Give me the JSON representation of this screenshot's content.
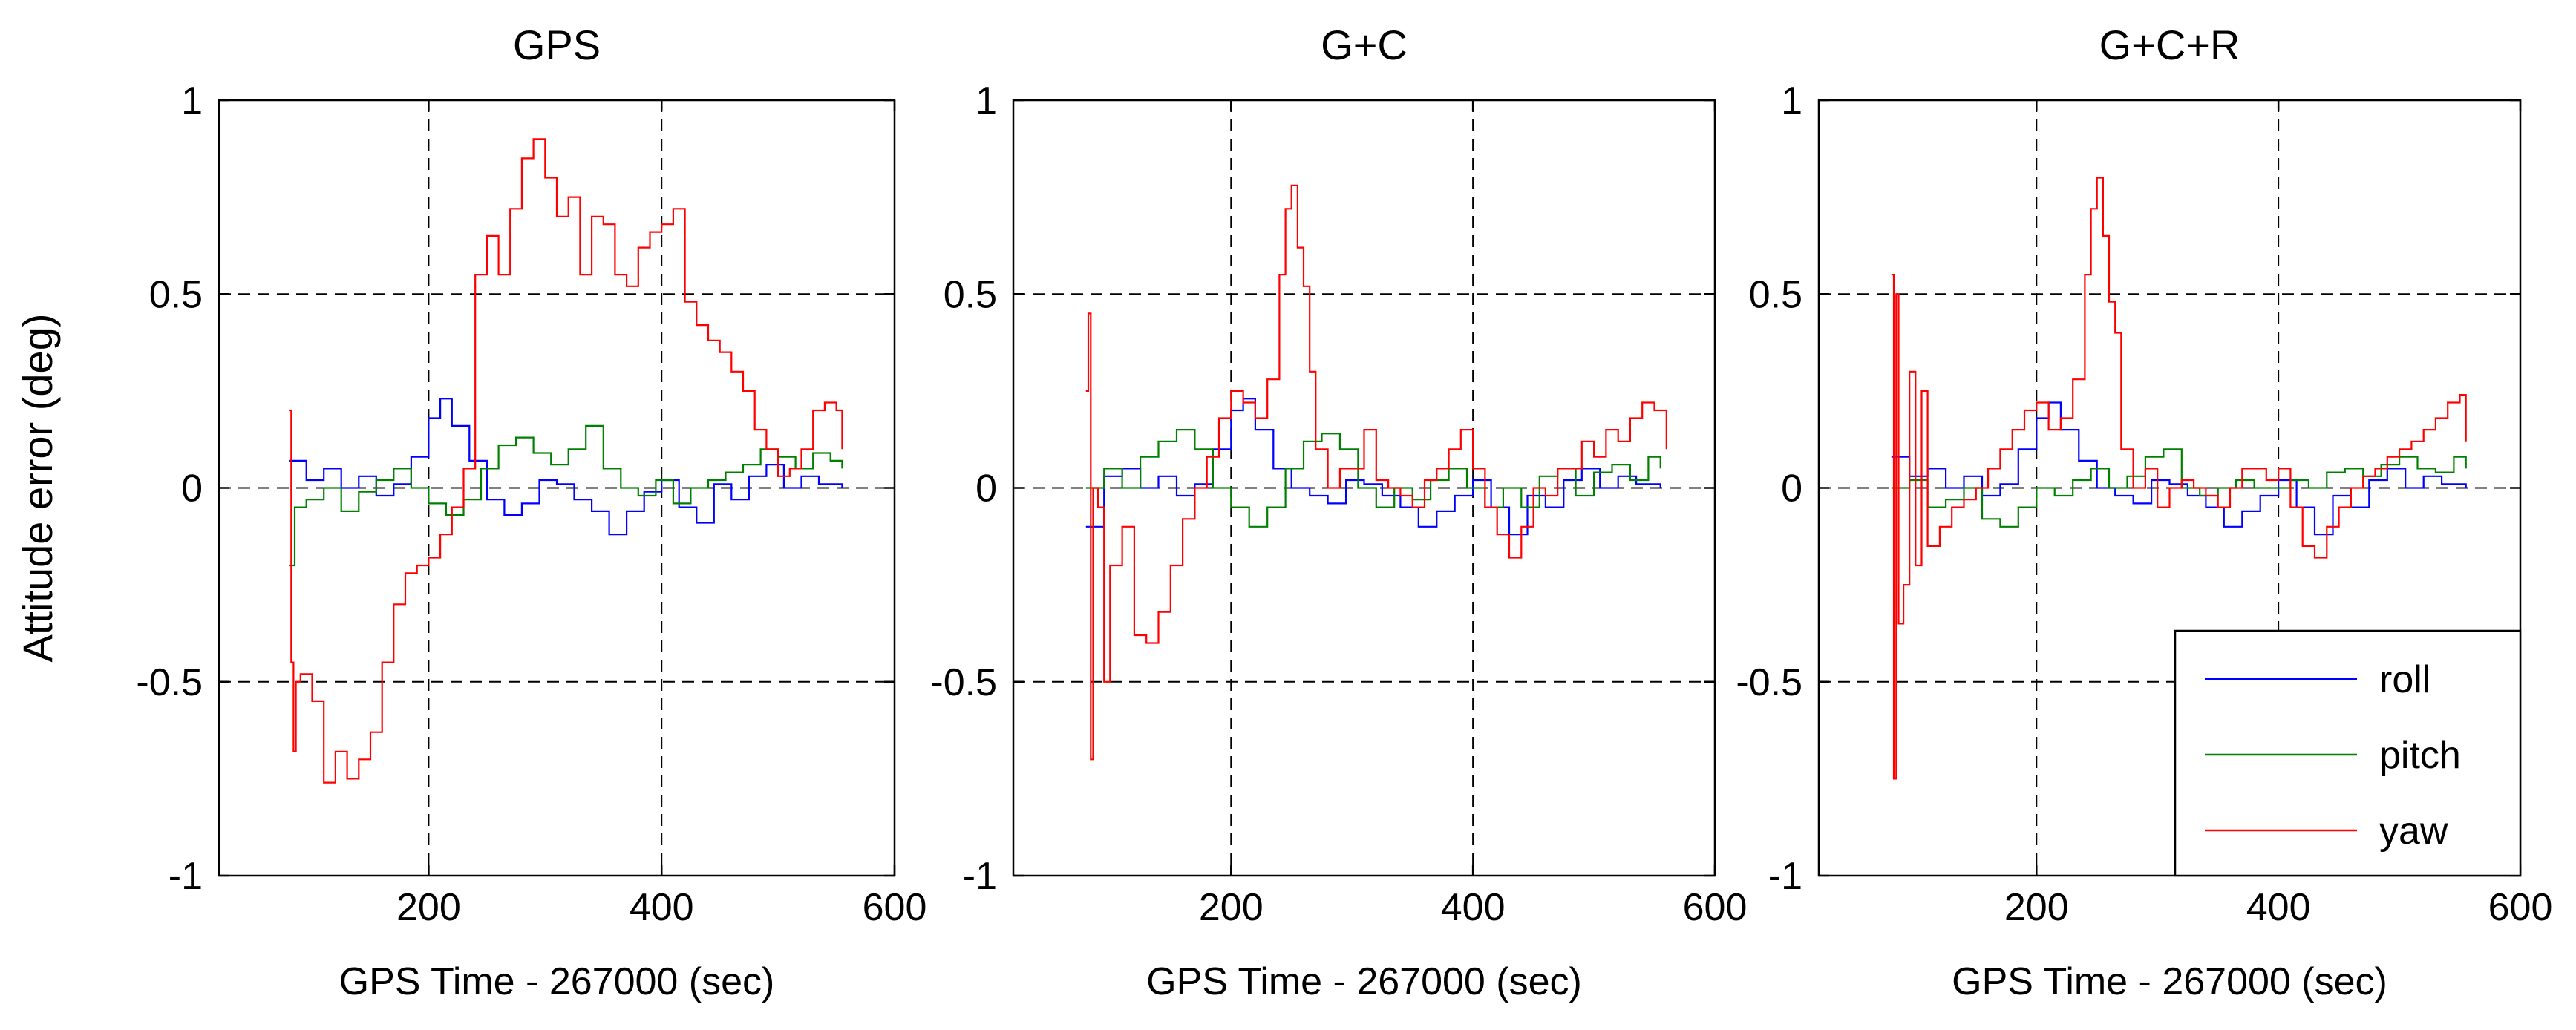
{
  "chart_data": [
    {
      "type": "line",
      "title": "GPS",
      "xlabel": "GPS Time - 267000 (sec)",
      "ylabel": "Attitude error (deg)",
      "xlim": [
        20,
        600
      ],
      "ylim": [
        -1,
        1
      ],
      "xticks": [
        200,
        400,
        600
      ],
      "yticks": [
        -1,
        -0.5,
        0,
        0.5,
        1
      ],
      "xtick_labels": [
        "200",
        "400",
        "600"
      ],
      "ytick_labels": [
        "-1",
        "-0.5",
        "0",
        "0.5",
        "1"
      ],
      "grid": true,
      "series": [
        {
          "name": "roll",
          "color": "#0000ff",
          "x": [
            80,
            95,
            110,
            125,
            140,
            155,
            170,
            185,
            200,
            210,
            220,
            235,
            250,
            265,
            280,
            295,
            310,
            325,
            340,
            355,
            370,
            385,
            400,
            415,
            430,
            445,
            460,
            475,
            490,
            505,
            520,
            535,
            555
          ],
          "y": [
            0.07,
            0.02,
            0.05,
            0.0,
            0.03,
            -0.02,
            0.01,
            0.08,
            0.18,
            0.23,
            0.16,
            0.07,
            -0.03,
            -0.07,
            -0.04,
            0.02,
            0.01,
            -0.03,
            -0.06,
            -0.12,
            -0.06,
            -0.01,
            0.02,
            -0.05,
            -0.09,
            0.01,
            -0.03,
            0.03,
            0.06,
            0.0,
            0.03,
            0.01,
            0.0
          ]
        },
        {
          "name": "pitch",
          "color": "#008000",
          "x": [
            80,
            85,
            95,
            110,
            125,
            140,
            155,
            170,
            185,
            200,
            215,
            230,
            245,
            260,
            275,
            290,
            305,
            320,
            335,
            350,
            365,
            380,
            395,
            410,
            425,
            440,
            455,
            470,
            485,
            500,
            515,
            530,
            545,
            555
          ],
          "y": [
            -0.2,
            -0.05,
            -0.03,
            0.0,
            -0.06,
            -0.01,
            0.02,
            0.05,
            0.0,
            -0.04,
            -0.07,
            -0.03,
            0.05,
            0.11,
            0.13,
            0.09,
            0.06,
            0.1,
            0.16,
            0.05,
            0.0,
            -0.02,
            0.02,
            -0.04,
            0.0,
            0.02,
            0.04,
            0.06,
            0.1,
            0.08,
            0.05,
            0.09,
            0.07,
            0.05
          ]
        },
        {
          "name": "yaw",
          "color": "#ff0000",
          "x": [
            80,
            82,
            84,
            86,
            90,
            100,
            110,
            120,
            130,
            140,
            150,
            160,
            170,
            180,
            190,
            200,
            210,
            220,
            230,
            240,
            250,
            260,
            270,
            280,
            290,
            300,
            310,
            320,
            330,
            340,
            350,
            360,
            370,
            380,
            390,
            400,
            410,
            420,
            430,
            440,
            450,
            460,
            470,
            480,
            490,
            500,
            510,
            520,
            530,
            540,
            550,
            555
          ],
          "y": [
            0.2,
            -0.45,
            -0.68,
            -0.5,
            -0.48,
            -0.55,
            -0.76,
            -0.68,
            -0.75,
            -0.7,
            -0.63,
            -0.45,
            -0.3,
            -0.22,
            -0.2,
            -0.18,
            -0.12,
            -0.05,
            0.05,
            0.55,
            0.65,
            0.55,
            0.72,
            0.85,
            0.9,
            0.8,
            0.7,
            0.75,
            0.55,
            0.7,
            0.68,
            0.55,
            0.52,
            0.62,
            0.66,
            0.68,
            0.72,
            0.48,
            0.42,
            0.38,
            0.35,
            0.3,
            0.25,
            0.15,
            0.1,
            0.03,
            0.05,
            0.1,
            0.2,
            0.22,
            0.2,
            0.1
          ]
        }
      ]
    },
    {
      "type": "line",
      "title": "G+C",
      "xlabel": "GPS Time - 267000 (sec)",
      "ylabel": "",
      "xlim": [
        20,
        600
      ],
      "ylim": [
        -1,
        1
      ],
      "xticks": [
        200,
        400,
        600
      ],
      "yticks": [
        -1,
        -0.5,
        0,
        0.5,
        1
      ],
      "xtick_labels": [
        "200",
        "400",
        "600"
      ],
      "ytick_labels": [
        "-1",
        "-0.5",
        "0",
        "0.5",
        "1"
      ],
      "grid": true,
      "series": [
        {
          "name": "roll",
          "color": "#0000ff",
          "x": [
            80,
            95,
            110,
            125,
            140,
            155,
            170,
            185,
            200,
            210,
            220,
            235,
            250,
            265,
            280,
            295,
            310,
            325,
            340,
            355,
            370,
            385,
            400,
            415,
            430,
            445,
            460,
            475,
            490,
            505,
            520,
            535,
            555
          ],
          "y": [
            -0.1,
            0.03,
            0.05,
            0.0,
            0.03,
            -0.02,
            0.01,
            0.1,
            0.2,
            0.23,
            0.15,
            0.05,
            0.0,
            -0.02,
            -0.04,
            0.02,
            0.01,
            -0.02,
            -0.05,
            -0.1,
            -0.06,
            -0.02,
            0.02,
            -0.05,
            -0.12,
            -0.02,
            -0.05,
            0.02,
            0.05,
            0.0,
            0.03,
            0.01,
            0.0
          ]
        },
        {
          "name": "pitch",
          "color": "#008000",
          "x": [
            80,
            95,
            110,
            125,
            140,
            155,
            170,
            185,
            200,
            215,
            230,
            245,
            260,
            275,
            290,
            305,
            320,
            335,
            350,
            365,
            380,
            395,
            410,
            425,
            440,
            455,
            470,
            485,
            500,
            515,
            530,
            545,
            555
          ],
          "y": [
            0.0,
            0.05,
            0.0,
            0.08,
            0.12,
            0.15,
            0.1,
            0.0,
            -0.05,
            -0.1,
            -0.05,
            0.05,
            0.12,
            0.14,
            0.1,
            0.0,
            -0.05,
            0.0,
            -0.03,
            0.02,
            0.05,
            0.0,
            -0.05,
            0.0,
            -0.05,
            0.03,
            0.05,
            -0.02,
            0.04,
            0.06,
            0.02,
            0.08,
            0.05
          ]
        },
        {
          "name": "yaw",
          "color": "#ff0000",
          "x": [
            80,
            82,
            84,
            86,
            90,
            95,
            100,
            110,
            120,
            130,
            140,
            150,
            160,
            170,
            180,
            190,
            200,
            210,
            220,
            230,
            240,
            245,
            250,
            255,
            260,
            265,
            270,
            280,
            290,
            300,
            310,
            320,
            330,
            340,
            350,
            360,
            370,
            380,
            390,
            400,
            410,
            420,
            430,
            440,
            450,
            460,
            470,
            480,
            490,
            500,
            510,
            520,
            530,
            540,
            550,
            560
          ],
          "y": [
            0.25,
            0.45,
            -0.7,
            0.0,
            -0.05,
            -0.5,
            -0.2,
            -0.1,
            -0.38,
            -0.4,
            -0.32,
            -0.2,
            -0.08,
            0.0,
            0.08,
            0.18,
            0.25,
            0.22,
            0.18,
            0.28,
            0.55,
            0.72,
            0.78,
            0.62,
            0.52,
            0.3,
            0.1,
            0.0,
            0.05,
            0.05,
            0.15,
            0.02,
            0.0,
            -0.02,
            -0.05,
            0.02,
            0.05,
            0.1,
            0.15,
            0.05,
            -0.05,
            -0.12,
            -0.18,
            -0.1,
            0.0,
            -0.02,
            0.05,
            0.05,
            0.12,
            0.08,
            0.15,
            0.12,
            0.18,
            0.22,
            0.2,
            0.1
          ]
        }
      ]
    },
    {
      "type": "line",
      "title": "G+C+R",
      "xlabel": "GPS Time - 267000 (sec)",
      "ylabel": "",
      "xlim": [
        20,
        600
      ],
      "ylim": [
        -1,
        1
      ],
      "xticks": [
        200,
        400,
        600
      ],
      "yticks": [
        -1,
        -0.5,
        0,
        0.5,
        1
      ],
      "xtick_labels": [
        "200",
        "400",
        "600"
      ],
      "ytick_labels": [
        "-1",
        "-0.5",
        "0",
        "0.5",
        "1"
      ],
      "grid": true,
      "legend": {
        "position": "bottom-right",
        "entries": [
          "roll",
          "pitch",
          "yaw"
        ]
      },
      "series": [
        {
          "name": "roll",
          "color": "#0000ff",
          "x": [
            80,
            95,
            110,
            125,
            140,
            155,
            170,
            185,
            200,
            210,
            220,
            235,
            250,
            265,
            280,
            295,
            310,
            325,
            340,
            355,
            370,
            385,
            400,
            415,
            430,
            445,
            460,
            475,
            490,
            505,
            520,
            535,
            555
          ],
          "y": [
            0.08,
            0.03,
            0.05,
            0.0,
            0.03,
            -0.02,
            0.01,
            0.1,
            0.18,
            0.22,
            0.15,
            0.07,
            0.0,
            -0.02,
            -0.04,
            0.02,
            0.01,
            -0.02,
            -0.05,
            -0.1,
            -0.06,
            -0.02,
            0.02,
            -0.05,
            -0.12,
            -0.02,
            -0.05,
            0.02,
            0.05,
            0.0,
            0.03,
            0.01,
            0.0
          ]
        },
        {
          "name": "pitch",
          "color": "#008000",
          "x": [
            80,
            95,
            110,
            125,
            140,
            155,
            170,
            185,
            200,
            215,
            230,
            245,
            260,
            275,
            290,
            305,
            320,
            335,
            350,
            365,
            380,
            395,
            410,
            425,
            440,
            455,
            470,
            485,
            500,
            515,
            530,
            545,
            555
          ],
          "y": [
            0.0,
            0.02,
            -0.05,
            -0.03,
            0.0,
            -0.08,
            -0.1,
            -0.05,
            0.0,
            -0.02,
            0.02,
            0.05,
            0.0,
            0.03,
            0.08,
            0.1,
            0.0,
            -0.02,
            0.0,
            0.02,
            0.0,
            0.0,
            0.02,
            0.0,
            0.04,
            0.05,
            0.03,
            0.06,
            0.08,
            0.05,
            0.04,
            0.08,
            0.05
          ]
        },
        {
          "name": "yaw",
          "color": "#ff0000",
          "x": [
            80,
            82,
            84,
            86,
            90,
            95,
            100,
            105,
            110,
            120,
            130,
            140,
            150,
            160,
            170,
            180,
            190,
            200,
            210,
            220,
            230,
            240,
            245,
            250,
            255,
            260,
            265,
            270,
            280,
            290,
            300,
            310,
            320,
            330,
            340,
            350,
            360,
            370,
            380,
            390,
            400,
            410,
            420,
            430,
            440,
            450,
            460,
            470,
            480,
            490,
            500,
            510,
            520,
            530,
            540,
            550,
            555
          ],
          "y": [
            0.55,
            -0.75,
            0.5,
            -0.35,
            -0.25,
            0.3,
            -0.2,
            0.25,
            -0.15,
            -0.1,
            -0.05,
            -0.03,
            0.0,
            0.05,
            0.1,
            0.15,
            0.2,
            0.22,
            0.15,
            0.18,
            0.28,
            0.55,
            0.72,
            0.8,
            0.65,
            0.48,
            0.4,
            0.1,
            0.0,
            0.05,
            -0.05,
            0.0,
            0.02,
            0.0,
            -0.02,
            -0.05,
            0.0,
            0.05,
            0.05,
            0.02,
            0.05,
            -0.05,
            -0.15,
            -0.18,
            -0.1,
            -0.05,
            0.0,
            0.03,
            0.05,
            0.08,
            0.1,
            0.12,
            0.15,
            0.18,
            0.22,
            0.24,
            0.12
          ]
        }
      ]
    }
  ]
}
